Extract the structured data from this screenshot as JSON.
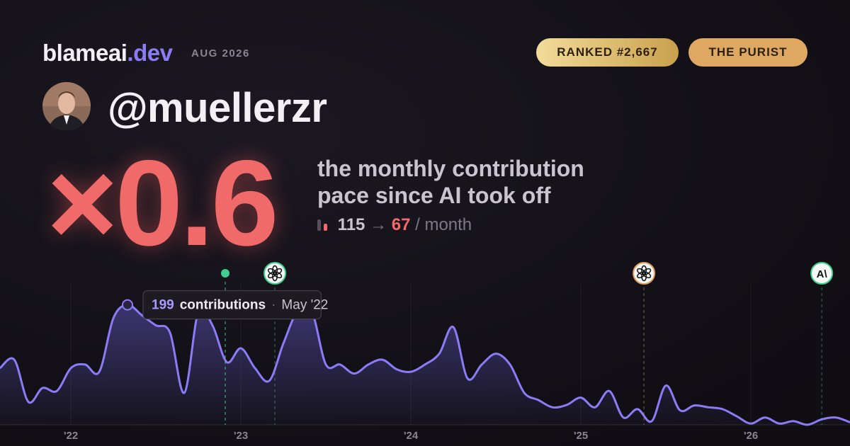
{
  "header": {
    "brand": "blameai",
    "brand_tld": ".dev",
    "date": "AUG 2026",
    "badges": [
      "RANKED #2,667",
      "THE PURIST"
    ],
    "handle": "@muellerzr"
  },
  "summary": {
    "multiplier": "×0.6",
    "description": [
      "the monthly contribution",
      "pace since AI took off"
    ],
    "before": 115,
    "arrow": "→",
    "after": 67,
    "unit": "/ month"
  },
  "chart_data": {
    "type": "line",
    "x": [
      2021.583,
      2021.667,
      2021.75,
      2021.833,
      2021.917,
      2022,
      2022.083,
      2022.167,
      2022.25,
      2022.333,
      2022.417,
      2022.5,
      2022.583,
      2022.667,
      2022.75,
      2022.833,
      2022.917,
      2023,
      2023.083,
      2023.167,
      2023.25,
      2023.333,
      2023.417,
      2023.5,
      2023.583,
      2023.667,
      2023.75,
      2023.833,
      2023.917,
      2024,
      2024.083,
      2024.167,
      2024.25,
      2024.333,
      2024.417,
      2024.5,
      2024.583,
      2024.667,
      2024.75,
      2024.833,
      2024.917,
      2025,
      2025.083,
      2025.167,
      2025.25,
      2025.333,
      2025.417,
      2025.5,
      2025.583,
      2025.667,
      2025.75,
      2025.833,
      2025.917,
      2026,
      2026.083,
      2026.167,
      2026.25,
      2026.333,
      2026.417,
      2026.5,
      2026.583
    ],
    "series": [
      {
        "name": "contributions",
        "color": "#8b7cf6",
        "values": [
          94,
          108,
          38,
          61,
          56,
          94,
          100,
          88,
          177,
          199,
          182,
          165,
          153,
          53,
          188,
          165,
          104,
          127,
          94,
          73,
          135,
          188,
          188,
          100,
          100,
          85,
          100,
          108,
          92,
          88,
          100,
          118,
          162,
          77,
          100,
          118,
          100,
          53,
          41,
          29,
          33,
          45,
          29,
          56,
          12,
          26,
          6,
          65,
          24,
          32,
          29,
          26,
          14,
          2,
          12,
          2,
          6,
          0,
          9,
          12,
          4
        ]
      }
    ],
    "tooltip": {
      "date": "May '22",
      "separator": "·"
    },
    "xlim": [
      2021.583,
      2026.583
    ],
    "xticks": [
      {
        "value": 2022,
        "label": "'22"
      },
      {
        "value": 2023,
        "label": "'23"
      },
      {
        "value": 2024,
        "label": "'24"
      },
      {
        "value": 2025,
        "label": "'25"
      },
      {
        "value": 2026,
        "label": "'26"
      }
    ],
    "ylim": [
      0,
      235
    ],
    "grid": true,
    "events": [
      {
        "x": 2022.908,
        "color": "#3ecf8e",
        "style": "dot"
      },
      {
        "x": 2023.2,
        "color": "#3ecf8e",
        "style": "openai"
      },
      {
        "x": 2025.371,
        "color": "#e0a060",
        "style": "openai"
      },
      {
        "x": 2026.417,
        "color": "#3ecf8e",
        "style": "label",
        "label": "A\\"
      }
    ]
  }
}
